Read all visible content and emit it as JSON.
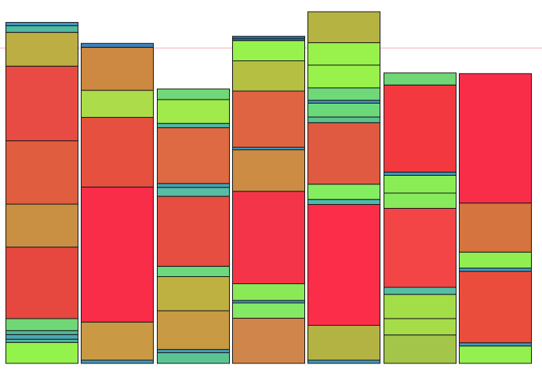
{
  "chart_data": {
    "type": "bar",
    "stacked": true,
    "grid": false,
    "legend": "none",
    "reference_line": {
      "y": 0.887,
      "color": "#f8c8d0"
    },
    "ylim": [
      0,
      1
    ],
    "columns": [
      {
        "segments": [
          {
            "value": 0.059,
            "color": "#94f24c"
          },
          {
            "value": 0.009,
            "color": "#4fba9f"
          },
          {
            "value": 0.013,
            "color": "#49a9b2"
          },
          {
            "value": 0.011,
            "color": "#4fb99e"
          },
          {
            "value": 0.034,
            "color": "#6fd776"
          },
          {
            "value": 0.201,
            "color": "#e6483f"
          },
          {
            "value": 0.121,
            "color": "#c98f42"
          },
          {
            "value": 0.178,
            "color": "#e05d40"
          },
          {
            "value": 0.21,
            "color": "#e74b43"
          },
          {
            "value": 0.095,
            "color": "#bcae42"
          },
          {
            "value": 0.019,
            "color": "#4fb9a2"
          },
          {
            "value": 0.009,
            "color": "#3f9bc2"
          }
        ]
      },
      {
        "segments": [
          {
            "value": 0.009,
            "color": "#3f9bc2"
          },
          {
            "value": 0.107,
            "color": "#c99a43"
          },
          {
            "value": 0.38,
            "color": "#fa2d49"
          },
          {
            "value": 0.196,
            "color": "#e6513f"
          },
          {
            "value": 0.076,
            "color": "#acdc4a"
          },
          {
            "value": 0.121,
            "color": "#cd8841"
          },
          {
            "value": 0.011,
            "color": "#4383bd"
          }
        ]
      },
      {
        "segments": [
          {
            "value": 0.03,
            "color": "#5cc493"
          },
          {
            "value": 0.009,
            "color": "#44a0bc"
          },
          {
            "value": 0.109,
            "color": "#c79a43"
          },
          {
            "value": 0.096,
            "color": "#bfb042"
          },
          {
            "value": 0.029,
            "color": "#6cd97d"
          },
          {
            "value": 0.197,
            "color": "#e54e41"
          },
          {
            "value": 0.025,
            "color": "#56bda6"
          },
          {
            "value": 0.011,
            "color": "#43a4b8"
          },
          {
            "value": 0.157,
            "color": "#dd6a42"
          },
          {
            "value": 0.012,
            "color": "#4fb8a4"
          },
          {
            "value": 0.067,
            "color": "#a0ea4c"
          },
          {
            "value": 0.03,
            "color": "#70d876"
          }
        ]
      },
      {
        "segments": [
          {
            "value": 0.127,
            "color": "#d0854b"
          },
          {
            "value": 0.043,
            "color": "#84e964"
          },
          {
            "value": 0.007,
            "color": "#3f9bc2"
          },
          {
            "value": 0.047,
            "color": "#8be957"
          },
          {
            "value": 0.26,
            "color": "#f43549"
          },
          {
            "value": 0.117,
            "color": "#cd8c43"
          },
          {
            "value": 0.007,
            "color": "#3f9bc2"
          },
          {
            "value": 0.158,
            "color": "#df6441"
          },
          {
            "value": 0.085,
            "color": "#b5c043"
          },
          {
            "value": 0.057,
            "color": "#98f24c"
          },
          {
            "value": 0.006,
            "color": "#1d72b6"
          },
          {
            "value": 0.006,
            "color": "#2b7fbc"
          }
        ]
      },
      {
        "segments": [
          {
            "value": 0.009,
            "color": "#3f9bc2"
          },
          {
            "value": 0.098,
            "color": "#b3b343"
          },
          {
            "value": 0.34,
            "color": "#fb2d49"
          },
          {
            "value": 0.014,
            "color": "#4cbbab"
          },
          {
            "value": 0.043,
            "color": "#84ed60"
          },
          {
            "value": 0.173,
            "color": "#e05a41"
          },
          {
            "value": 0.016,
            "color": "#5cc08f"
          },
          {
            "value": 0.039,
            "color": "#6bd879"
          },
          {
            "value": 0.008,
            "color": "#3f9bc2"
          },
          {
            "value": 0.035,
            "color": "#6fd878"
          },
          {
            "value": 0.064,
            "color": "#98f24b"
          },
          {
            "value": 0.063,
            "color": "#98f24b"
          },
          {
            "value": 0.087,
            "color": "#b5b443"
          }
        ]
      },
      {
        "segments": [
          {
            "value": 0.08,
            "color": "#a3c549"
          },
          {
            "value": 0.046,
            "color": "#a5dc48"
          },
          {
            "value": 0.068,
            "color": "#a3dd48"
          },
          {
            "value": 0.02,
            "color": "#56bda6"
          },
          {
            "value": 0.222,
            "color": "#f34545"
          },
          {
            "value": 0.043,
            "color": "#86ea5c"
          },
          {
            "value": 0.05,
            "color": "#8aed56"
          },
          {
            "value": 0.009,
            "color": "#3f9bc2"
          },
          {
            "value": 0.245,
            "color": "#f3393f"
          },
          {
            "value": 0.034,
            "color": "#70d776"
          }
        ]
      },
      {
        "segments": [
          {
            "value": 0.049,
            "color": "#93f04f"
          },
          {
            "value": 0.009,
            "color": "#3f9bc2"
          },
          {
            "value": 0.201,
            "color": "#ea4d3c"
          },
          {
            "value": 0.009,
            "color": "#3f9bc2"
          },
          {
            "value": 0.045,
            "color": "#90ee51"
          },
          {
            "value": 0.138,
            "color": "#d5743f"
          },
          {
            "value": 0.364,
            "color": "#fa2d49"
          }
        ]
      }
    ]
  }
}
